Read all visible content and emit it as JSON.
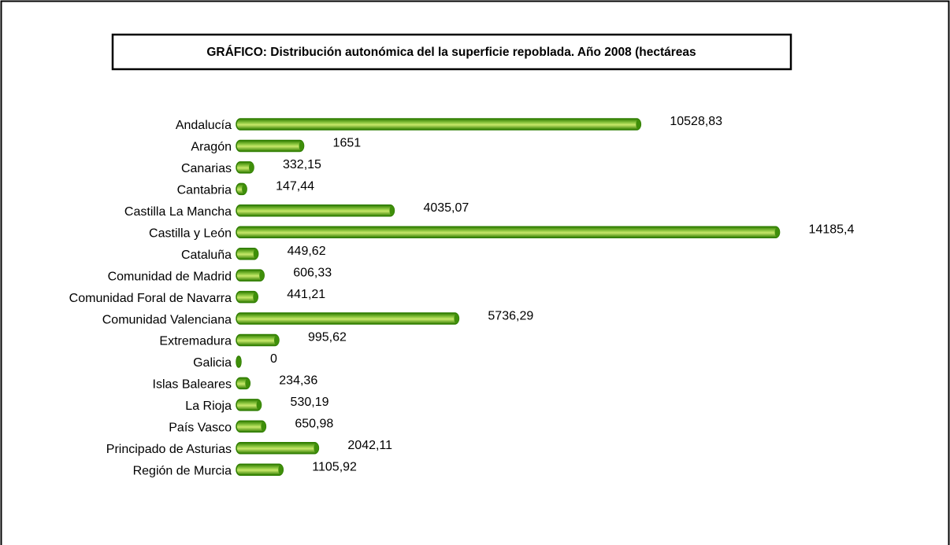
{
  "chart_data": {
    "type": "barh",
    "title": "GRÁFICO: Distribución autonómica del la superficie repoblada. Año 2008 (hectáreas",
    "categories": [
      "Andalucía",
      "Aragón",
      "Canarias",
      "Cantabria",
      "Castilla La Mancha",
      "Castilla y León",
      "Cataluña",
      "Comunidad de Madrid",
      "Comunidad Foral de Navarra",
      "Comunidad Valenciana",
      "Extremadura",
      "Galicia",
      "Islas Baleares",
      "La Rioja",
      "País Vasco",
      "Principado de Asturias",
      "Región de Murcia"
    ],
    "values": [
      10528.83,
      1651,
      332.15,
      147.44,
      4035.07,
      14185.4,
      449.62,
      606.33,
      441.21,
      5736.29,
      995.62,
      0,
      234.36,
      530.19,
      650.98,
      2042.11,
      1105.92
    ],
    "value_labels": [
      "10528,83",
      "1651",
      "332,15",
      "147,44",
      "4035,07",
      "14185,4",
      "449,62",
      "606,33",
      "441,21",
      "5736,29",
      "995,62",
      "0",
      "234,36",
      "530,19",
      "650,98",
      "2042,11",
      "1105,92"
    ],
    "color": "#8cc63f",
    "xlim": [
      0,
      16000
    ]
  }
}
